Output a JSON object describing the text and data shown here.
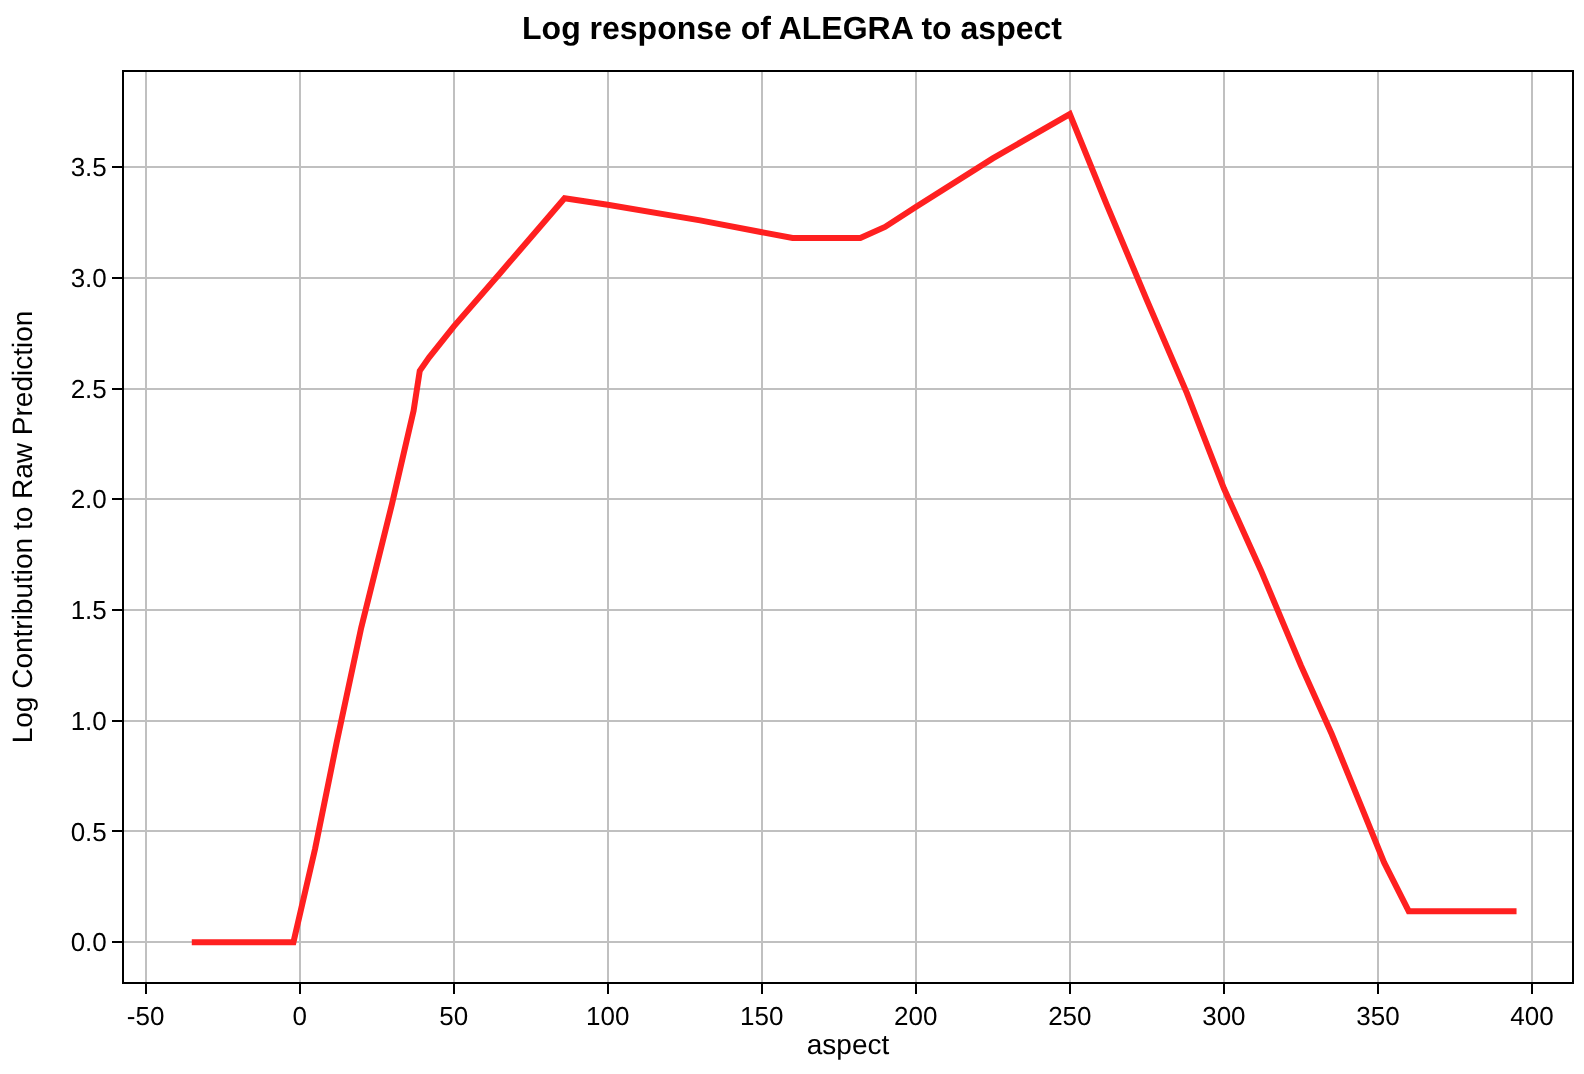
{
  "chart_data": {
    "type": "line",
    "title": "Log response of ALEGRA to aspect",
    "xlabel": "aspect",
    "ylabel": "Log Contribution to Raw Prediction",
    "x": [
      -35,
      -2,
      5,
      12,
      20,
      30,
      37,
      39,
      42,
      50,
      65,
      86,
      100,
      130,
      160,
      182,
      190,
      200,
      225,
      250,
      262,
      275,
      288,
      300,
      312,
      325,
      335,
      345,
      352,
      360,
      380,
      395
    ],
    "series": [
      {
        "color": "#ff2020",
        "values": [
          0,
          0,
          0.42,
          0.9,
          1.42,
          1.98,
          2.4,
          2.58,
          2.64,
          2.78,
          3.02,
          3.36,
          3.33,
          3.26,
          3.18,
          3.18,
          3.23,
          3.32,
          3.54,
          3.74,
          3.33,
          2.9,
          2.48,
          2.05,
          1.68,
          1.25,
          0.94,
          0.6,
          0.36,
          0.14,
          0.14,
          0.14
        ]
      }
    ],
    "xlim": [
      -57,
      413
    ],
    "ylim": [
      -0.18,
      3.93
    ],
    "xticks": [
      -50,
      0,
      50,
      100,
      150,
      200,
      250,
      300,
      350,
      400
    ],
    "yticks": [
      {
        "value": 0,
        "label": "0.0"
      },
      0.5,
      {
        "value": 1,
        "label": "1.0"
      },
      1.5,
      {
        "value": 2,
        "label": "2.0"
      },
      2.5,
      {
        "value": 3,
        "label": "3.0"
      },
      3.5
    ],
    "grid": true,
    "legend": false
  }
}
